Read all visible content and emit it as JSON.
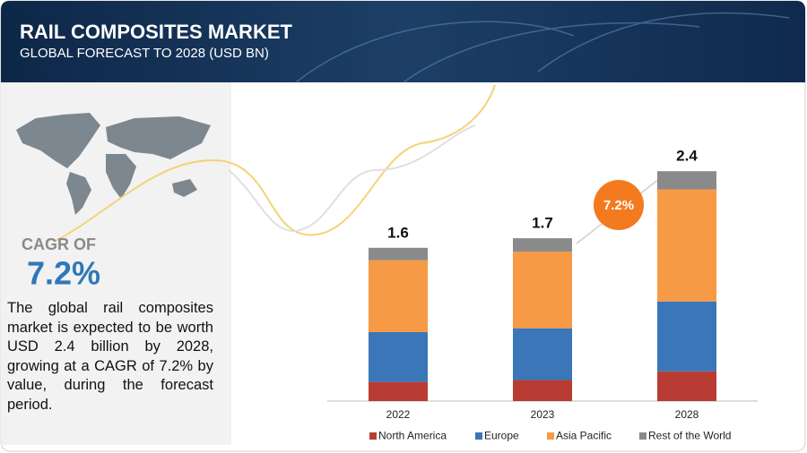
{
  "header": {
    "title": "RAIL COMPOSITES MARKET",
    "subtitle": "GLOBAL FORECAST TO 2028 (USD BN)"
  },
  "sidebar": {
    "cagr_label": "CAGR OF",
    "cagr_value": "7.2%",
    "description": "The global rail composites market is expected to be worth USD 2.4 billion by 2028, growing at a CAGR of 7.2% by value, during the forecast period."
  },
  "chart_data": {
    "type": "bar",
    "stacked": true,
    "categories": [
      "2022",
      "2023",
      "2028"
    ],
    "series": [
      {
        "name": "North America",
        "color": "#b83c33",
        "values": [
          0.2,
          0.22,
          0.31
        ]
      },
      {
        "name": "Europe",
        "color": "#3a76b8",
        "values": [
          0.52,
          0.54,
          0.73
        ]
      },
      {
        "name": "Asia Pacific",
        "color": "#f79a45",
        "values": [
          0.75,
          0.8,
          1.17
        ]
      },
      {
        "name": "Rest of the World",
        "color": "#8a8a8a",
        "values": [
          0.13,
          0.14,
          0.19
        ]
      }
    ],
    "totals": [
      1.6,
      1.7,
      2.4
    ],
    "badge": "7.2%"
  }
}
